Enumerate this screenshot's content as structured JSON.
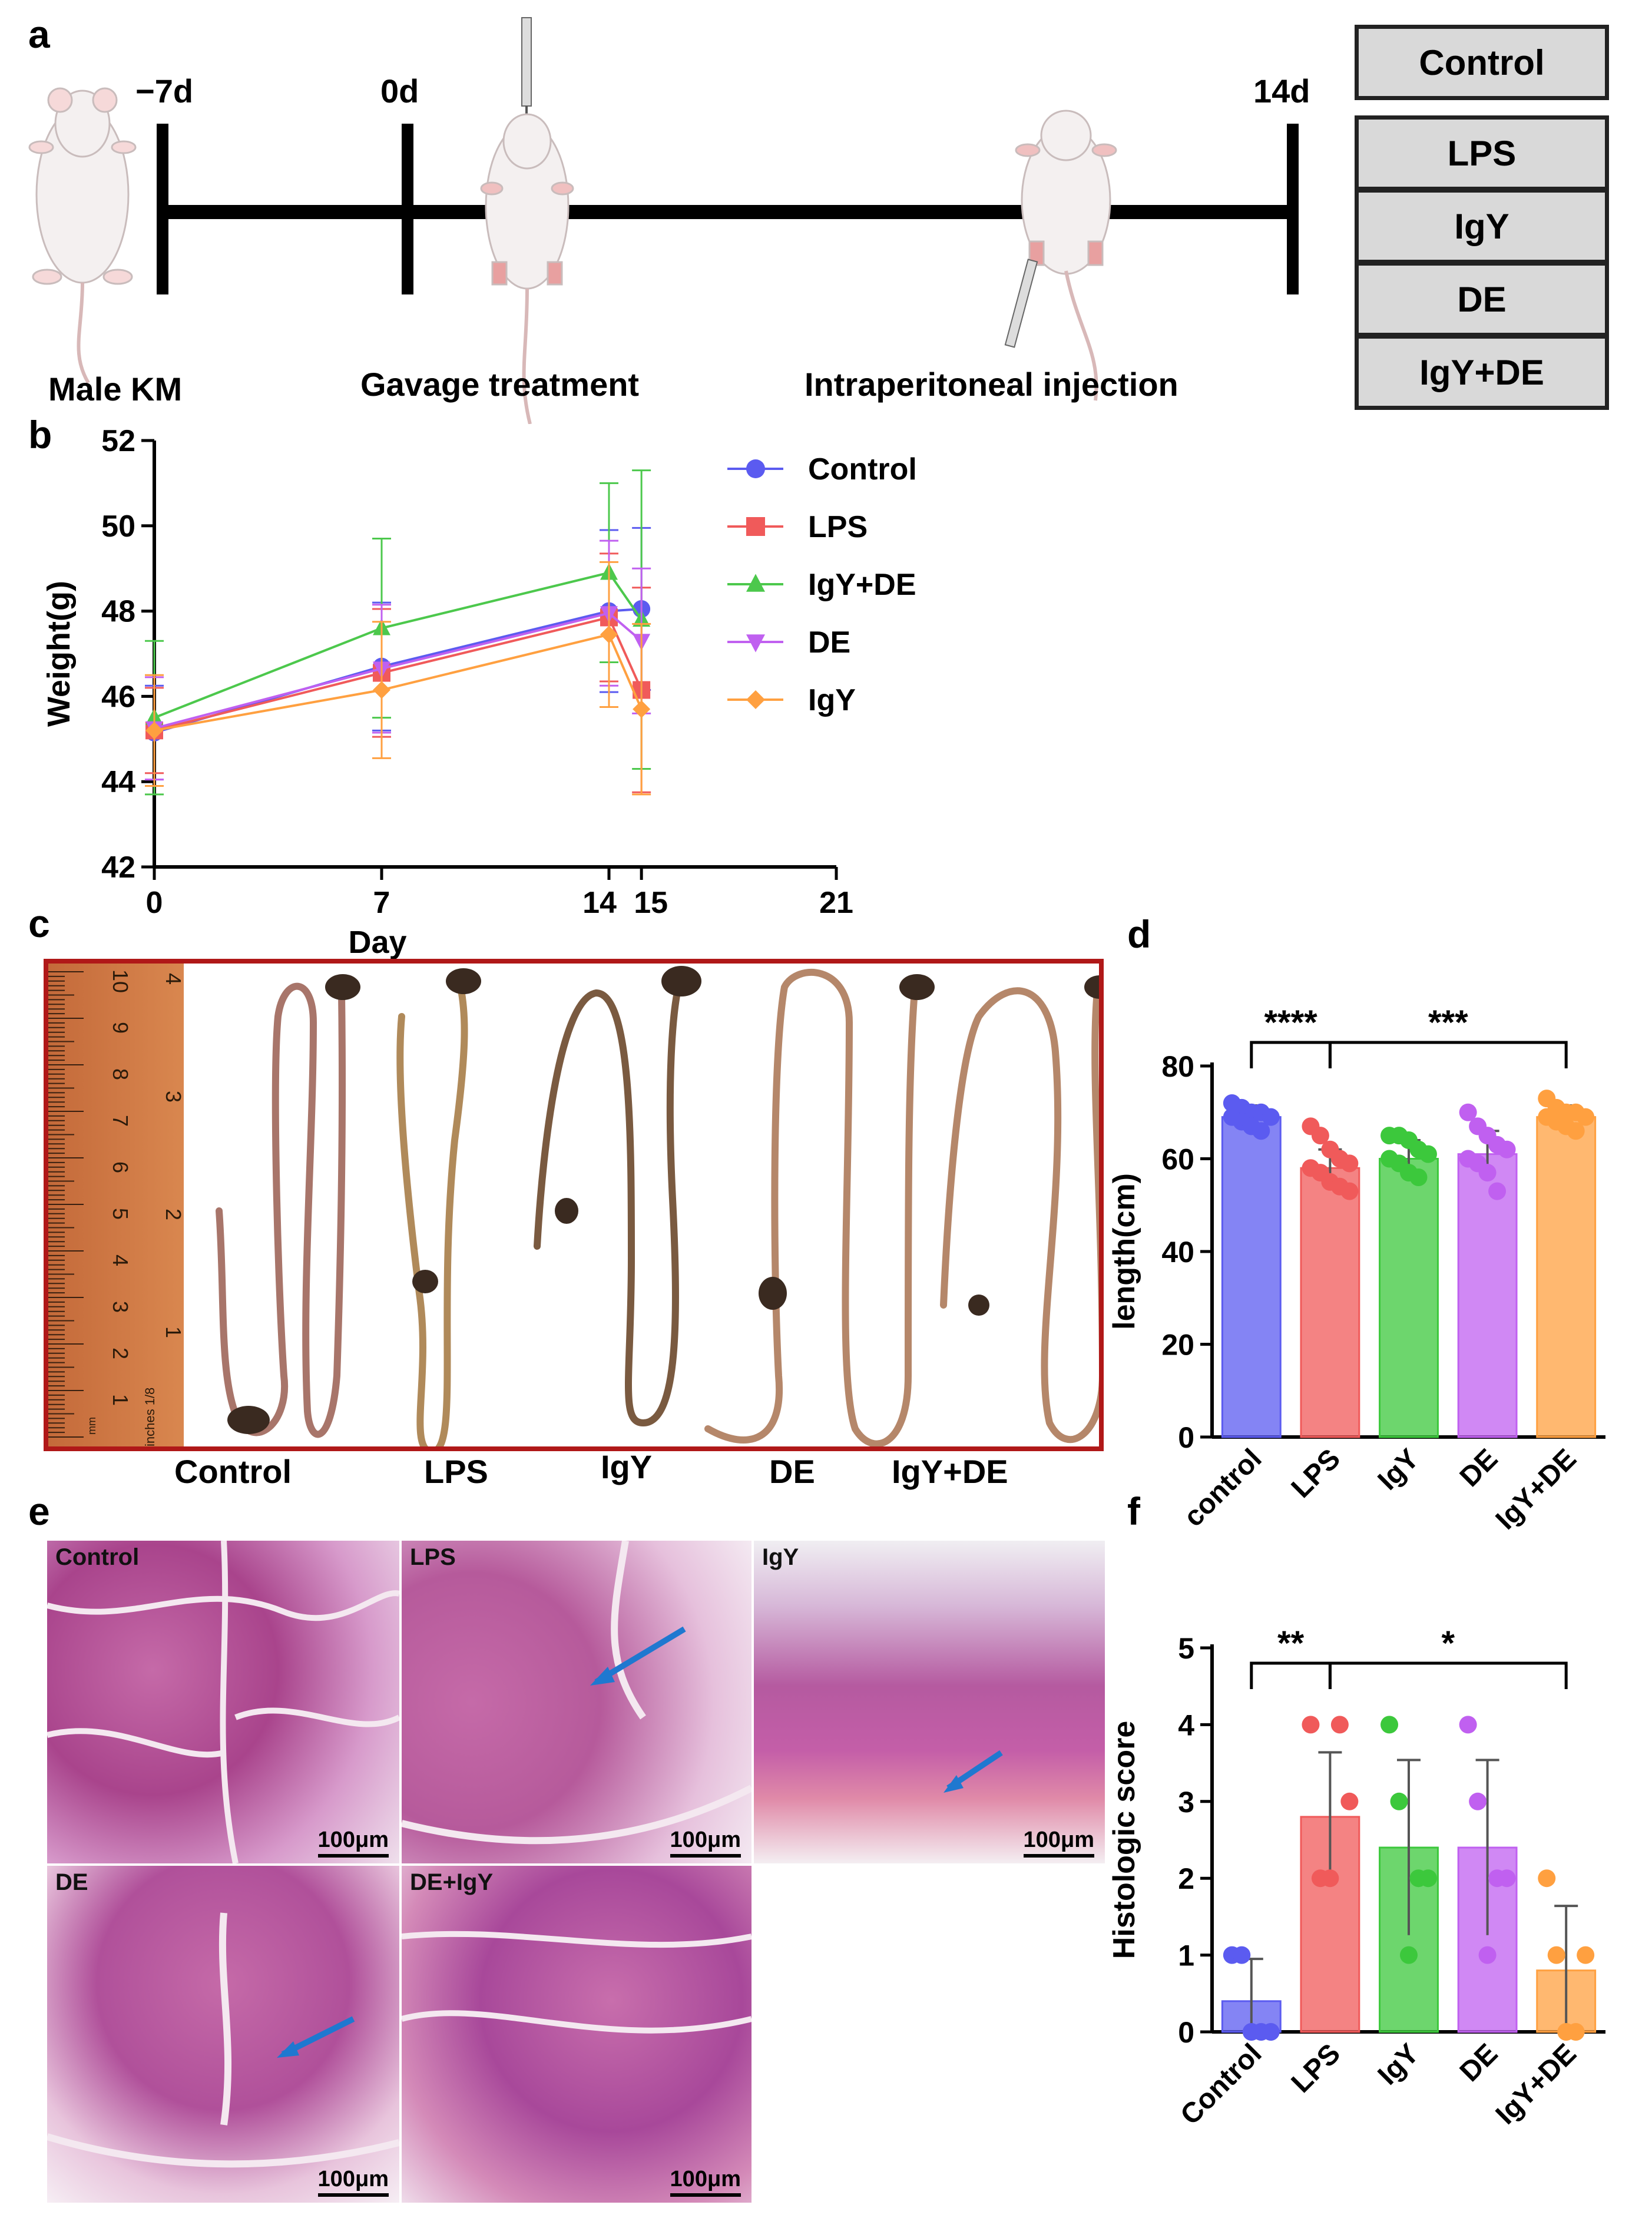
{
  "panels": {
    "a": "a",
    "b": "b",
    "c": "c",
    "d": "d",
    "e": "e",
    "f": "f"
  },
  "panel_a": {
    "timepoints": [
      "−7d",
      "0d",
      "14d"
    ],
    "labels": {
      "male": "Male KM",
      "gavage": "Gavage treatment",
      "injection": "Intraperitoneal injection"
    },
    "groups": [
      "Control",
      "LPS",
      "IgY",
      "DE",
      "IgY+DE"
    ]
  },
  "chart_data": [
    {
      "id": "weight",
      "type": "line",
      "title": "",
      "xlabel": "Day",
      "ylabel": "Weight(g)",
      "xlim": [
        0,
        21
      ],
      "ylim": [
        42,
        52
      ],
      "xticks": [
        0,
        7,
        14,
        15,
        21
      ],
      "xtick_labels": [
        "0",
        "7",
        "14",
        "15",
        "21"
      ],
      "yticks": [
        42,
        44,
        46,
        48,
        50,
        52
      ],
      "x": [
        0,
        7,
        14,
        15
      ],
      "series": [
        {
          "name": "Control",
          "color": "#5b5bf0",
          "marker": "circle",
          "values": [
            45.15,
            46.7,
            48.0,
            48.05
          ],
          "err": [
            1.1,
            1.5,
            1.9,
            1.9
          ]
        },
        {
          "name": "LPS",
          "color": "#f05a5a",
          "marker": "square",
          "values": [
            45.2,
            46.55,
            47.85,
            46.15
          ],
          "err": [
            1.0,
            1.5,
            1.5,
            2.4
          ]
        },
        {
          "name": "IgY+DE",
          "color": "#4cc84c",
          "marker": "triangle-up",
          "values": [
            45.5,
            47.6,
            48.9,
            47.8
          ],
          "err": [
            1.8,
            2.1,
            2.1,
            3.5
          ]
        },
        {
          "name": "DE",
          "color": "#c060f0",
          "marker": "triangle-down",
          "values": [
            45.25,
            46.65,
            47.95,
            47.3
          ],
          "err": [
            1.2,
            1.5,
            1.7,
            1.7
          ]
        },
        {
          "name": "IgY",
          "color": "#ffa040",
          "marker": "diamond",
          "values": [
            45.2,
            46.15,
            47.45,
            45.7
          ],
          "err": [
            1.3,
            1.6,
            1.7,
            2.0
          ]
        }
      ]
    },
    {
      "id": "length",
      "type": "bar",
      "title": "",
      "xlabel": "",
      "ylabel": "length(cm)",
      "ylim": [
        0,
        80
      ],
      "yticks": [
        0,
        20,
        40,
        60,
        80
      ],
      "categories": [
        "control",
        "LPS",
        "IgY",
        "DE",
        "IgY+DE"
      ],
      "colors": [
        "#5b5bf0",
        "#f05a5a",
        "#3cc83c",
        "#c060f0",
        "#ffa040"
      ],
      "values": [
        69,
        58,
        60,
        61,
        69
      ],
      "err": [
        2.5,
        4,
        4,
        5,
        2.5
      ],
      "points": [
        [
          72,
          71,
          70,
          70,
          69,
          69,
          68,
          67,
          66
        ],
        [
          67,
          65,
          62,
          60,
          59,
          58,
          57,
          55,
          54,
          53
        ],
        [
          65,
          65,
          64,
          62,
          61,
          60,
          59,
          57,
          56
        ],
        [
          70,
          67,
          65,
          63,
          62,
          60,
          59,
          57,
          53
        ],
        [
          73,
          71,
          70,
          70,
          69,
          69,
          68,
          67,
          66
        ]
      ],
      "significance": [
        {
          "from": 0,
          "to": 1,
          "label": "****"
        },
        {
          "from": 1,
          "to": 4,
          "label": "***"
        }
      ]
    },
    {
      "id": "histologic",
      "type": "bar",
      "title": "",
      "xlabel": "",
      "ylabel": "Histologic score",
      "ylim": [
        0,
        5
      ],
      "yticks": [
        0,
        1,
        2,
        3,
        4,
        5
      ],
      "categories": [
        "Control",
        "LPS",
        "IgY",
        "DE",
        "IgY+DE"
      ],
      "colors": [
        "#5b5bf0",
        "#f05a5a",
        "#3cc83c",
        "#c060f0",
        "#ffa040"
      ],
      "values": [
        0.4,
        2.8,
        2.4,
        2.4,
        0.8
      ],
      "err": [
        0.55,
        0.84,
        1.14,
        1.14,
        0.84
      ],
      "points": [
        [
          1,
          1,
          0,
          0,
          0
        ],
        [
          4,
          2,
          2,
          4,
          3
        ],
        [
          4,
          3,
          1,
          2,
          2
        ],
        [
          4,
          3,
          1,
          2,
          2
        ],
        [
          2,
          1,
          0,
          0,
          1
        ]
      ],
      "significance": [
        {
          "from": 0,
          "to": 1,
          "label": "**"
        },
        {
          "from": 1,
          "to": 4,
          "label": "*"
        }
      ]
    }
  ],
  "panel_c": {
    "ruler_ticks_cm": [
      "10",
      "9",
      "8",
      "7",
      "6",
      "5",
      "4",
      "3",
      "2",
      "1"
    ],
    "ruler_ticks_in": [
      "4",
      "3",
      "2",
      "1"
    ],
    "ruler_small": [
      "mm",
      "inches 1/8"
    ],
    "labels": [
      "Control",
      "LPS",
      "IgY",
      "DE",
      "IgY+DE"
    ]
  },
  "panel_e": {
    "images": [
      {
        "label": "Control",
        "scale": "100μm"
      },
      {
        "label": "LPS",
        "scale": "100μm"
      },
      {
        "label": "IgY",
        "scale": "100μm"
      },
      {
        "label": "DE",
        "scale": "100μm"
      },
      {
        "label": "DE+IgY",
        "scale": "100μm"
      }
    ]
  }
}
